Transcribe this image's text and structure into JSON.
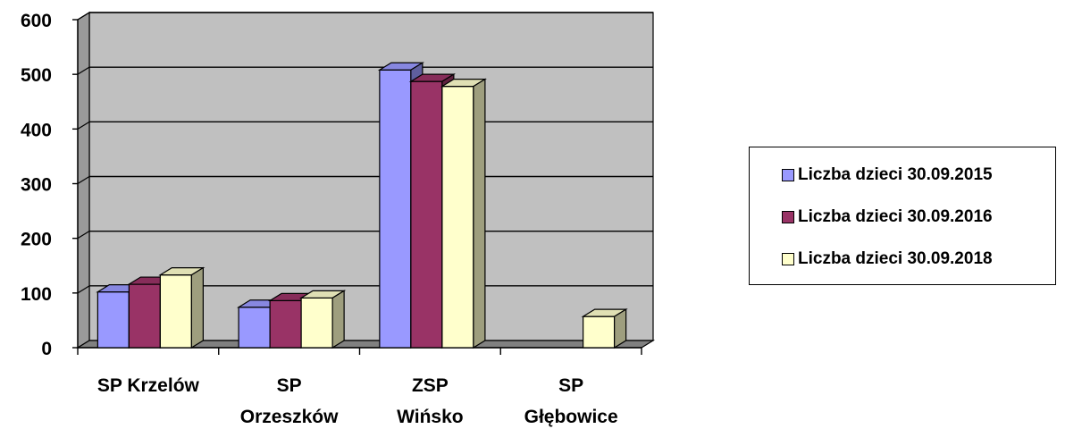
{
  "chart_data": {
    "type": "bar",
    "categories": [
      "SP Krzelów",
      "SP Orzeszków",
      "ZSP Wińsko",
      "SP Głębowice"
    ],
    "category_label_lines": [
      [
        "SP Krzelów"
      ],
      [
        "SP",
        "Orzeszków"
      ],
      [
        "ZSP",
        "Wińsko"
      ],
      [
        "SP",
        "Głębowice"
      ]
    ],
    "series": [
      {
        "name": "Liczba dzieci 30.09.2015",
        "color": "#9999ff",
        "values": [
          102,
          74,
          508,
          0
        ]
      },
      {
        "name": "Liczba dzieci 30.09.2016",
        "color": "#993366",
        "values": [
          116,
          86,
          487,
          0
        ]
      },
      {
        "name": "Liczba dzieci 30.09.2018",
        "color": "#ffffcc",
        "values": [
          133,
          91,
          478,
          57
        ]
      }
    ],
    "yticks": [
      0,
      100,
      200,
      300,
      400,
      500,
      600
    ],
    "ylim": [
      0,
      600
    ],
    "grid": true,
    "legend_position": "right",
    "wall_color": "#c0c0c0",
    "floor_color": "#808080"
  }
}
